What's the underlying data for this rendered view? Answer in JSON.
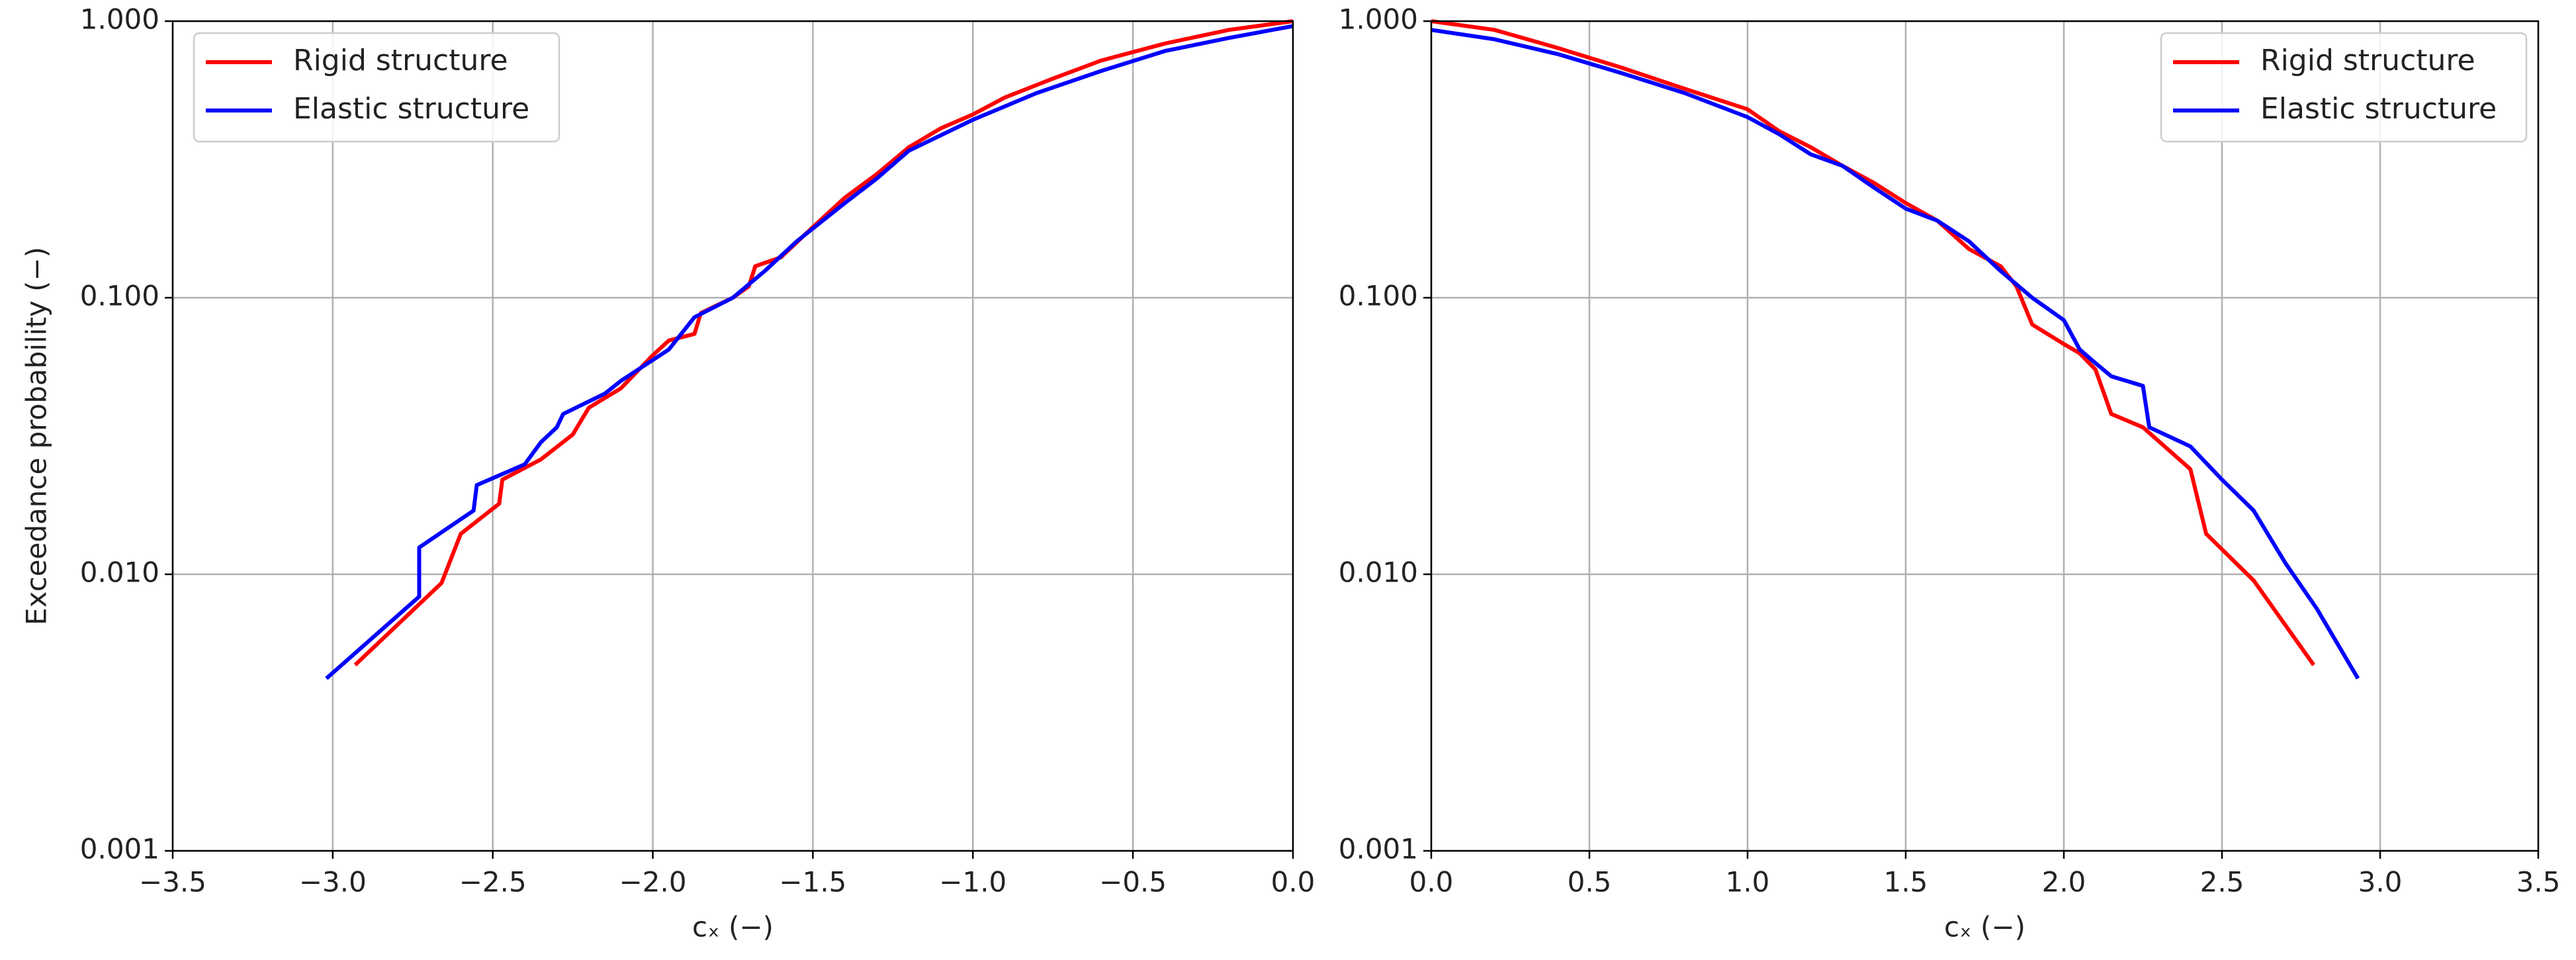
{
  "chart_data": [
    {
      "type": "line",
      "log_y": true,
      "grid": true,
      "legend": "upper left",
      "xlabel": "cₓ (−)",
      "ylabel": "Exceedance probability (−)",
      "xlim": [
        -3.5,
        0.0
      ],
      "xticks": [
        {
          "value": -3.5,
          "label": "−3.5"
        },
        {
          "value": -3.0,
          "label": "−3.0"
        },
        {
          "value": -2.5,
          "label": "−2.5"
        },
        {
          "value": -2.0,
          "label": "−2.0"
        },
        {
          "value": -1.5,
          "label": "−1.5"
        },
        {
          "value": -1.0,
          "label": "−1.0"
        },
        {
          "value": -0.5,
          "label": "−0.5"
        },
        {
          "value": 0.0,
          "label": "0.0"
        }
      ],
      "ylim": [
        0.001,
        1.0
      ],
      "yticks": [
        0.001,
        {
          "value": 0.01,
          "label": "0.010"
        },
        {
          "value": 0.1,
          "label": "0.100"
        },
        {
          "value": 1.0,
          "label": "1.000"
        }
      ],
      "series": [
        {
          "name": "Rigid structure",
          "color": "#ff0000",
          "x": [
            -2.93,
            -2.66,
            -2.6,
            -2.48,
            -2.47,
            -2.35,
            -2.25,
            -2.2,
            -2.1,
            -2.0,
            -1.95,
            -1.87,
            -1.85,
            -1.75,
            -1.7,
            -1.68,
            -1.6,
            -1.5,
            -1.4,
            -1.3,
            -1.2,
            -1.1,
            -1.0,
            -0.9,
            -0.75,
            -0.6,
            -0.4,
            -0.2,
            0.0
          ],
          "values": [
            0.0047,
            0.0093,
            0.014,
            0.018,
            0.022,
            0.026,
            0.032,
            0.04,
            0.047,
            0.062,
            0.07,
            0.074,
            0.088,
            0.1,
            0.11,
            0.13,
            0.14,
            0.18,
            0.23,
            0.28,
            0.35,
            0.41,
            0.46,
            0.53,
            0.62,
            0.72,
            0.83,
            0.93,
            1.0
          ]
        },
        {
          "name": "Elastic structure",
          "color": "#0000ff",
          "x": [
            -3.02,
            -2.73,
            -2.73,
            -2.56,
            -2.55,
            -2.4,
            -2.35,
            -2.3,
            -2.28,
            -2.15,
            -2.1,
            -1.95,
            -1.87,
            -1.75,
            -1.65,
            -1.55,
            -1.4,
            -1.3,
            -1.2,
            -1.0,
            -0.8,
            -0.6,
            -0.4,
            -0.2,
            0.0
          ],
          "values": [
            0.0042,
            0.0083,
            0.0125,
            0.017,
            0.021,
            0.025,
            0.03,
            0.034,
            0.038,
            0.045,
            0.05,
            0.065,
            0.085,
            0.1,
            0.125,
            0.16,
            0.22,
            0.27,
            0.34,
            0.44,
            0.55,
            0.66,
            0.78,
            0.87,
            0.96
          ]
        }
      ]
    },
    {
      "type": "line",
      "log_y": true,
      "grid": true,
      "legend": "upper right",
      "xlabel": "cₓ (−)",
      "xlim": [
        0.0,
        3.5
      ],
      "xticks": [
        {
          "value": 0.0,
          "label": "0.0"
        },
        0.5,
        {
          "value": 1.0,
          "label": "1.0"
        },
        1.5,
        {
          "value": 2.0,
          "label": "2.0"
        },
        2.5,
        {
          "value": 3.0,
          "label": "3.0"
        },
        3.5
      ],
      "ylim": [
        0.001,
        1.0
      ],
      "yticks": [
        0.001,
        {
          "value": 0.01,
          "label": "0.010"
        },
        {
          "value": 0.1,
          "label": "0.100"
        },
        {
          "value": 1.0,
          "label": "1.000"
        }
      ],
      "series": [
        {
          "name": "Rigid structure",
          "color": "#ff0000",
          "x": [
            0,
            0.2,
            0.4,
            0.6,
            0.8,
            1.0,
            1.1,
            1.2,
            1.3,
            1.4,
            1.5,
            1.6,
            1.7,
            1.8,
            1.85,
            1.9,
            2.0,
            2.05,
            2.1,
            2.15,
            2.25,
            2.4,
            2.45,
            2.6,
            2.79
          ],
          "values": [
            1.0,
            0.93,
            0.8,
            0.68,
            0.57,
            0.48,
            0.4,
            0.35,
            0.3,
            0.26,
            0.22,
            0.19,
            0.15,
            0.13,
            0.11,
            0.08,
            0.068,
            0.063,
            0.055,
            0.038,
            0.034,
            0.024,
            0.014,
            0.0095,
            0.0047
          ]
        },
        {
          "name": "Elastic structure",
          "color": "#0000ff",
          "x": [
            0,
            0.2,
            0.4,
            0.6,
            0.8,
            1.0,
            1.1,
            1.2,
            1.3,
            1.4,
            1.5,
            1.6,
            1.7,
            1.8,
            1.9,
            2.0,
            2.05,
            2.1,
            2.15,
            2.25,
            2.27,
            2.4,
            2.5,
            2.6,
            2.7,
            2.8,
            2.93
          ],
          "values": [
            0.93,
            0.86,
            0.76,
            0.65,
            0.55,
            0.45,
            0.39,
            0.33,
            0.3,
            0.25,
            0.21,
            0.19,
            0.16,
            0.125,
            0.1,
            0.083,
            0.065,
            0.058,
            0.052,
            0.048,
            0.034,
            0.029,
            0.022,
            0.017,
            0.011,
            0.0075,
            0.0042
          ]
        }
      ]
    }
  ]
}
